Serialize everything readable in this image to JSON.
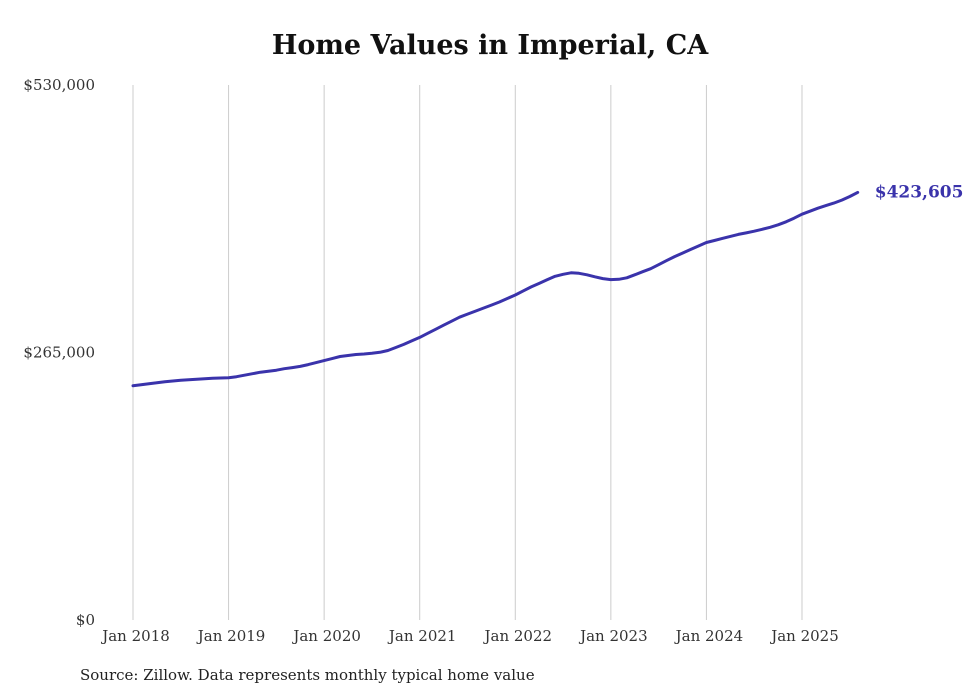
{
  "title": "Home Values in Imperial, CA",
  "source_note": "Source: Zillow. Data represents monthly typical home value",
  "end_label": "$423,605",
  "colors": {
    "line": "#3a33ab",
    "grid": "#cccccc",
    "tick_text": "#333333"
  },
  "chart_data": {
    "type": "line",
    "title": "Home Values in Imperial, CA",
    "xlabel": "",
    "ylabel": "",
    "ylim": [
      0,
      530000
    ],
    "grid": "vertical-only",
    "legend": "none",
    "y_ticks": [
      {
        "value": 0,
        "label": "$0"
      },
      {
        "value": 265000,
        "label": "$265,000"
      },
      {
        "value": 530000,
        "label": "$530,000"
      }
    ],
    "x_ticks": [
      "Jan 2018",
      "Jan 2019",
      "Jan 2020",
      "Jan 2021",
      "Jan 2022",
      "Jan 2023",
      "Jan 2024",
      "Jan 2025"
    ],
    "tick_indices": [
      0,
      12,
      24,
      36,
      48,
      60,
      72,
      84
    ],
    "series": [
      {
        "name": "Monthly typical home value",
        "color": "#3a33ab",
        "x": [
          "2018-01",
          "2018-02",
          "2018-03",
          "2018-04",
          "2018-05",
          "2018-06",
          "2018-07",
          "2018-08",
          "2018-09",
          "2018-10",
          "2018-11",
          "2018-12",
          "2019-01",
          "2019-02",
          "2019-03",
          "2019-04",
          "2019-05",
          "2019-06",
          "2019-07",
          "2019-08",
          "2019-09",
          "2019-10",
          "2019-11",
          "2019-12",
          "2020-01",
          "2020-02",
          "2020-03",
          "2020-04",
          "2020-05",
          "2020-06",
          "2020-07",
          "2020-08",
          "2020-09",
          "2020-10",
          "2020-11",
          "2020-12",
          "2021-01",
          "2021-02",
          "2021-03",
          "2021-04",
          "2021-05",
          "2021-06",
          "2021-07",
          "2021-08",
          "2021-09",
          "2021-10",
          "2021-11",
          "2021-12",
          "2022-01",
          "2022-02",
          "2022-03",
          "2022-04",
          "2022-05",
          "2022-06",
          "2022-07",
          "2022-08",
          "2022-09",
          "2022-10",
          "2022-11",
          "2022-12",
          "2023-01",
          "2023-02",
          "2023-03",
          "2023-04",
          "2023-05",
          "2023-06",
          "2023-07",
          "2023-08",
          "2023-09",
          "2023-10",
          "2023-11",
          "2023-12",
          "2024-01",
          "2024-02",
          "2024-03",
          "2024-04",
          "2024-05",
          "2024-06",
          "2024-07",
          "2024-08",
          "2024-09",
          "2024-10",
          "2024-11",
          "2024-12",
          "2025-01",
          "2025-02",
          "2025-03",
          "2025-04",
          "2025-05",
          "2025-06",
          "2025-07",
          "2025-08"
        ],
        "values": [
          232000,
          233000,
          234000,
          235000,
          236000,
          236800,
          237500,
          238000,
          238500,
          239000,
          239400,
          239700,
          240000,
          241000,
          242500,
          244000,
          245500,
          246500,
          247500,
          249000,
          250000,
          251200,
          253000,
          255000,
          257000,
          259000,
          261000,
          262000,
          263000,
          263500,
          264200,
          265200,
          267000,
          270000,
          273000,
          276500,
          280000,
          284000,
          288000,
          292000,
          296000,
          300000,
          303000,
          306000,
          309000,
          312000,
          315000,
          318500,
          322000,
          326000,
          330000,
          333500,
          337000,
          340500,
          342500,
          344000,
          343500,
          342000,
          340000,
          338200,
          337200,
          337500,
          339000,
          342000,
          345000,
          348000,
          352000,
          356000,
          360000,
          363500,
          367000,
          370500,
          374000,
          376000,
          378000,
          380000,
          382000,
          383500,
          385200,
          387000,
          389000,
          391500,
          394500,
          398000,
          402000,
          405000,
          408000,
          410500,
          413000,
          416000,
          419500,
          423605
        ]
      }
    ],
    "end_annotation": {
      "text": "$423,605",
      "series": "Monthly typical home value",
      "point": "2025-08"
    }
  }
}
